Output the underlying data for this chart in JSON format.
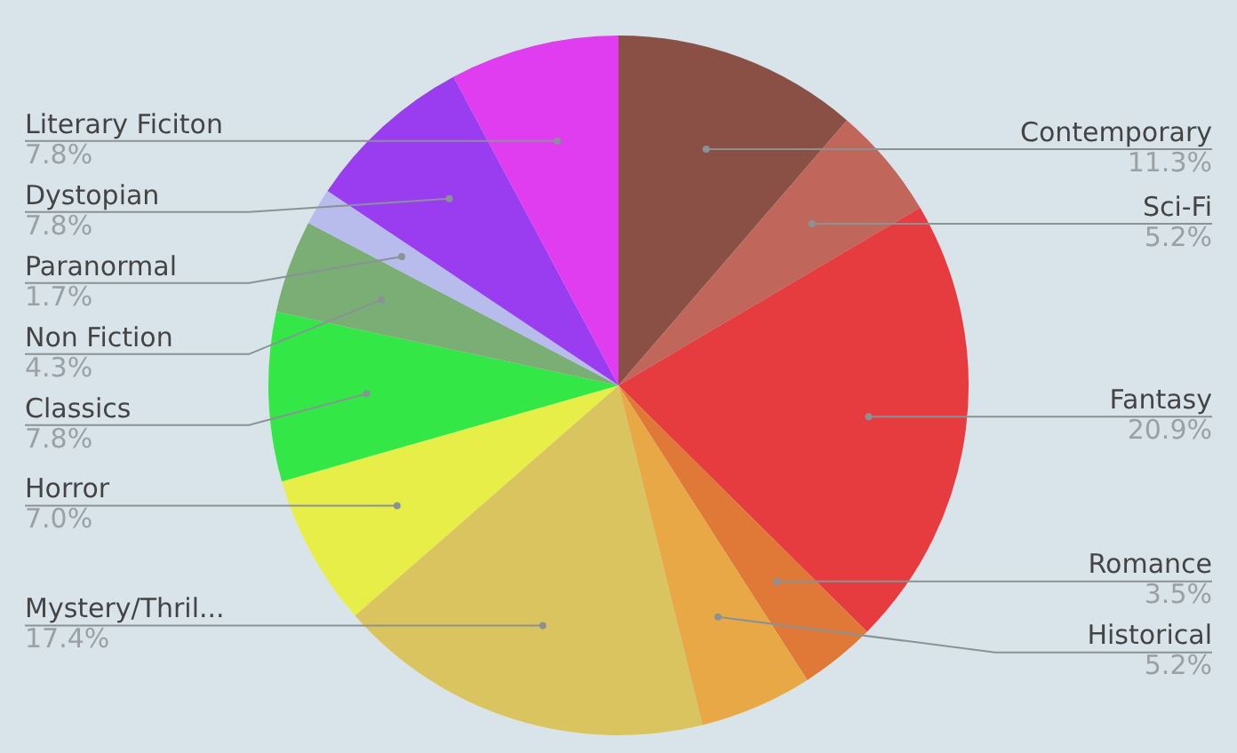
{
  "chart_data": {
    "type": "pie",
    "categories": [
      "Contemporary",
      "Sci-Fi",
      "Fantasy",
      "Romance",
      "Historical",
      "Mystery/Thril...",
      "Horror",
      "Classics",
      "Non Fiction",
      "Paranormal",
      "Dystopian",
      "Literary Ficiton"
    ],
    "values": [
      11.3,
      5.2,
      20.9,
      3.5,
      5.2,
      17.4,
      7.0,
      7.8,
      4.3,
      1.7,
      7.8,
      7.8
    ],
    "colors": [
      "#8b5045",
      "#c0665a",
      "#e63b3f",
      "#e07838",
      "#e8a845",
      "#d9c460",
      "#e8ee48",
      "#33e846",
      "#7aae74",
      "#b8bcec",
      "#9a3cf0",
      "#e03cf0"
    ],
    "value_labels": [
      "11.3%",
      "5.2%",
      "20.9%",
      "3.5%",
      "5.2%",
      "17.4%",
      "7.0%",
      "7.8%",
      "4.3%",
      "1.7%",
      "7.8%",
      "7.8%"
    ],
    "legend": false
  }
}
